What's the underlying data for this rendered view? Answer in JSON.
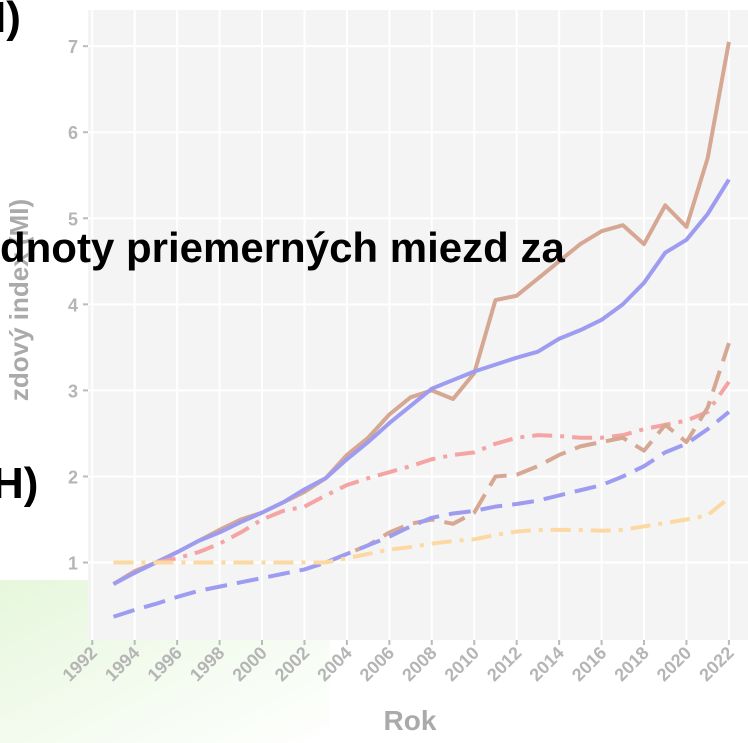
{
  "chart_data": {
    "type": "line",
    "y_label": "zdový index (MI)",
    "x_label": "Rok",
    "overlay_texts": [
      "I)",
      "dnoty priemerných miezd za",
      "H)"
    ],
    "x": [
      1993,
      1994,
      1995,
      1996,
      1997,
      1998,
      1999,
      2000,
      2001,
      2002,
      2003,
      2004,
      2005,
      2006,
      2007,
      2008,
      2009,
      2010,
      2011,
      2012,
      2013,
      2014,
      2015,
      2016,
      2017,
      2018,
      2019,
      2020,
      2021,
      2022
    ],
    "xlim": [
      1991.8,
      2022.9
    ],
    "xticks": [
      1992,
      1994,
      1996,
      1998,
      2000,
      2002,
      2004,
      2006,
      2008,
      2010,
      2012,
      2014,
      2016,
      2018,
      2020,
      2022
    ],
    "ylim": [
      0.1,
      7.42
    ],
    "yticks": [
      1,
      2,
      3,
      4,
      5,
      6,
      7
    ],
    "grid": true,
    "series": [
      {
        "color": "#d6a792",
        "dash": "solid",
        "values": [
          0.75,
          0.9,
          1.0,
          1.12,
          1.25,
          1.38,
          1.5,
          1.58,
          1.7,
          1.82,
          1.98,
          2.25,
          2.45,
          2.72,
          2.92,
          3.0,
          2.9,
          3.2,
          4.05,
          4.1,
          4.3,
          4.5,
          4.7,
          4.85,
          4.92,
          4.7,
          5.15,
          4.9,
          5.7,
          7.05
        ]
      },
      {
        "color": "#9d9cf0",
        "dash": "solid",
        "values": [
          0.75,
          0.88,
          1.0,
          1.12,
          1.25,
          1.35,
          1.47,
          1.58,
          1.7,
          1.85,
          1.98,
          2.2,
          2.4,
          2.62,
          2.82,
          3.02,
          3.12,
          3.22,
          3.3,
          3.38,
          3.45,
          3.6,
          3.7,
          3.82,
          4.0,
          4.25,
          4.6,
          4.75,
          5.05,
          5.45
        ]
      },
      {
        "color": "#f5a3a3",
        "dash": "dashdot",
        "values": [
          null,
          null,
          1.0,
          1.05,
          1.12,
          1.22,
          1.35,
          1.5,
          1.6,
          1.65,
          1.78,
          1.9,
          1.98,
          2.05,
          2.12,
          2.2,
          2.25,
          2.28,
          2.38,
          2.45,
          2.48,
          2.47,
          2.45,
          2.45,
          2.48,
          2.55,
          2.6,
          2.65,
          2.75,
          3.1
        ]
      },
      {
        "color": "#d6a792",
        "dash": "dashed",
        "values": [
          null,
          null,
          null,
          null,
          null,
          null,
          null,
          null,
          null,
          null,
          1.0,
          1.1,
          1.2,
          1.35,
          1.45,
          1.5,
          1.45,
          1.58,
          2.0,
          2.02,
          2.12,
          2.25,
          2.35,
          2.4,
          2.45,
          2.3,
          2.6,
          2.4,
          2.8,
          3.55
        ]
      },
      {
        "color": "#9d9cf0",
        "dash": "dashed",
        "values": [
          0.37,
          0.45,
          0.52,
          0.6,
          0.67,
          0.72,
          0.77,
          0.82,
          0.87,
          0.92,
          1.0,
          1.1,
          1.2,
          1.3,
          1.42,
          1.52,
          1.57,
          1.6,
          1.65,
          1.68,
          1.72,
          1.78,
          1.84,
          1.9,
          2.0,
          2.12,
          2.28,
          2.38,
          2.55,
          2.75
        ]
      },
      {
        "color": "#fcd9a2",
        "dash": "dashdot",
        "values": [
          1.0,
          1.0,
          1.0,
          1.0,
          1.0,
          1.0,
          1.0,
          1.0,
          1.0,
          1.0,
          1.0,
          1.05,
          1.1,
          1.15,
          1.18,
          1.22,
          1.25,
          1.27,
          1.32,
          1.36,
          1.38,
          1.38,
          1.38,
          1.37,
          1.38,
          1.42,
          1.46,
          1.5,
          1.55,
          1.75
        ]
      }
    ]
  }
}
